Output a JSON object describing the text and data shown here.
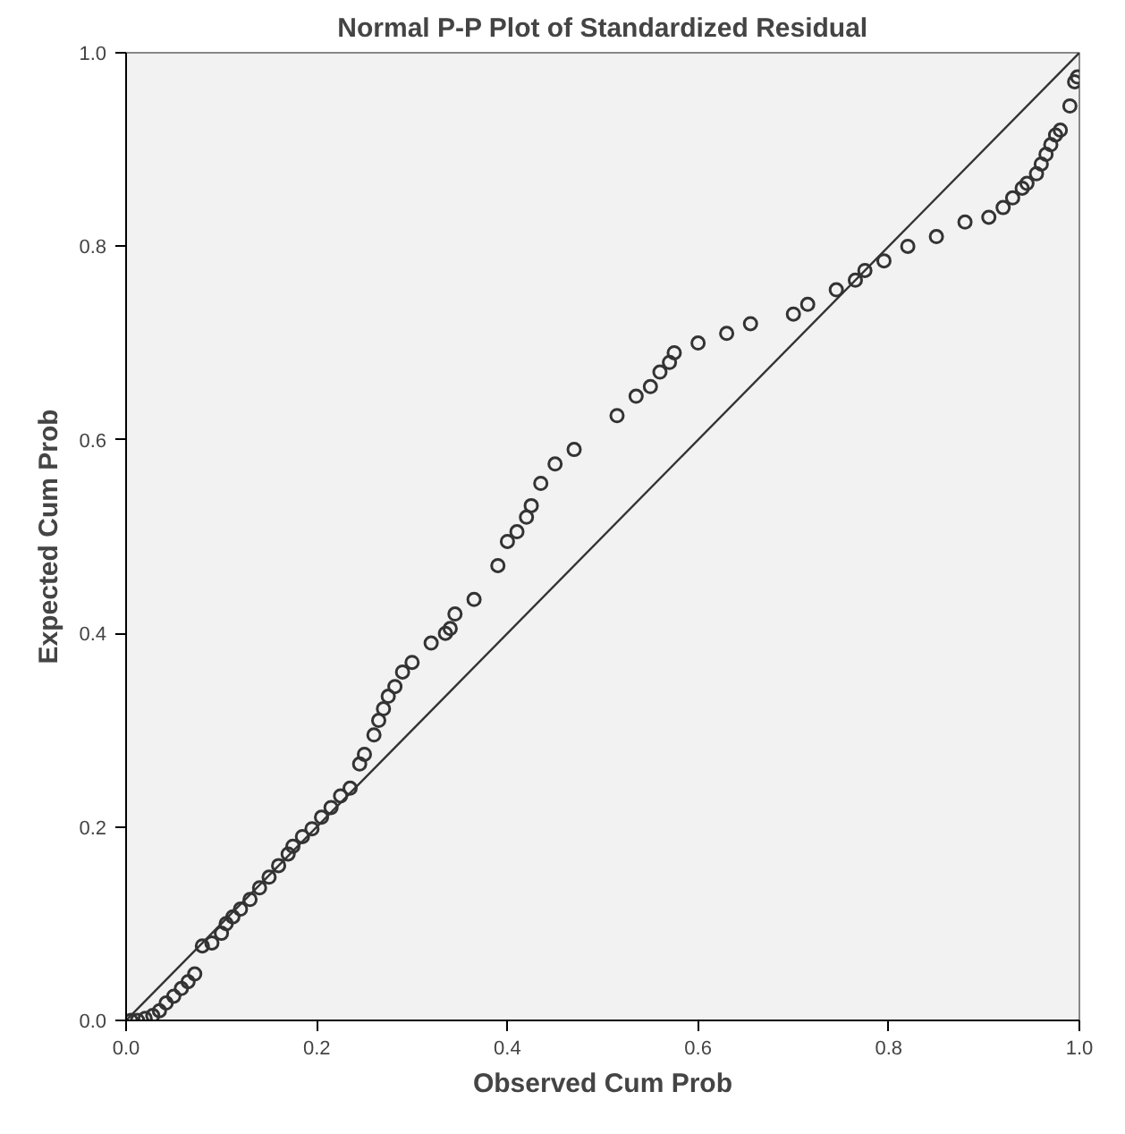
{
  "chart_data": {
    "type": "scatter",
    "title": "Normal P-P Plot of Standardized Residual",
    "xlabel": "Observed Cum Prob",
    "ylabel": "Expected Cum Prob",
    "xlim": [
      0,
      1
    ],
    "ylim": [
      0,
      1
    ],
    "xticks": [
      {
        "value": 0,
        "label": "0.0"
      },
      {
        "value": 0.2,
        "label": "0.2"
      },
      {
        "value": 0.4,
        "label": "0.4"
      },
      {
        "value": 0.6,
        "label": "0.6"
      },
      {
        "value": 0.8,
        "label": "0.8"
      },
      {
        "value": 1,
        "label": "1.0"
      }
    ],
    "yticks": [
      {
        "value": 0,
        "label": "0.0"
      },
      {
        "value": 0.2,
        "label": "0.2"
      },
      {
        "value": 0.4,
        "label": "0.4"
      },
      {
        "value": 0.6,
        "label": "0.6"
      },
      {
        "value": 0.8,
        "label": "0.8"
      },
      {
        "value": 1,
        "label": "1.0"
      }
    ],
    "grid": false,
    "series": [
      {
        "marker": "circle",
        "color": "#333333",
        "x": [
          0.005,
          0.012,
          0.02,
          0.028,
          0.035,
          0.042,
          0.05,
          0.058,
          0.065,
          0.072,
          0.08,
          0.09,
          0.1,
          0.105,
          0.112,
          0.12,
          0.13,
          0.14,
          0.15,
          0.16,
          0.17,
          0.175,
          0.185,
          0.195,
          0.205,
          0.215,
          0.225,
          0.235,
          0.245,
          0.25,
          0.26,
          0.265,
          0.27,
          0.275,
          0.282,
          0.29,
          0.3,
          0.32,
          0.335,
          0.34,
          0.345,
          0.365,
          0.39,
          0.4,
          0.41,
          0.42,
          0.425,
          0.435,
          0.45,
          0.47,
          0.515,
          0.535,
          0.55,
          0.56,
          0.57,
          0.575,
          0.6,
          0.63,
          0.655,
          0.7,
          0.715,
          0.745,
          0.765,
          0.775,
          0.795,
          0.82,
          0.85,
          0.88,
          0.905,
          0.92,
          0.93,
          0.94,
          0.945,
          0.955,
          0.96,
          0.965,
          0.97,
          0.975,
          0.98,
          0.99,
          0.995,
          0.998
        ],
        "values": [
          0.0,
          0.0,
          0.002,
          0.005,
          0.01,
          0.018,
          0.025,
          0.033,
          0.04,
          0.048,
          0.077,
          0.08,
          0.09,
          0.1,
          0.107,
          0.115,
          0.125,
          0.137,
          0.148,
          0.16,
          0.172,
          0.18,
          0.19,
          0.198,
          0.21,
          0.22,
          0.232,
          0.24,
          0.265,
          0.275,
          0.295,
          0.31,
          0.322,
          0.335,
          0.345,
          0.36,
          0.37,
          0.39,
          0.4,
          0.405,
          0.42,
          0.435,
          0.47,
          0.495,
          0.505,
          0.52,
          0.532,
          0.555,
          0.575,
          0.59,
          0.625,
          0.645,
          0.655,
          0.67,
          0.68,
          0.69,
          0.7,
          0.71,
          0.72,
          0.73,
          0.74,
          0.755,
          0.765,
          0.775,
          0.785,
          0.8,
          0.81,
          0.825,
          0.83,
          0.84,
          0.85,
          0.86,
          0.865,
          0.875,
          0.885,
          0.895,
          0.905,
          0.915,
          0.92,
          0.945,
          0.97,
          0.975
        ]
      },
      {
        "type": "line",
        "marker": "none",
        "color": "#333333",
        "x": [
          0,
          1
        ],
        "values": [
          0,
          1
        ]
      }
    ]
  }
}
